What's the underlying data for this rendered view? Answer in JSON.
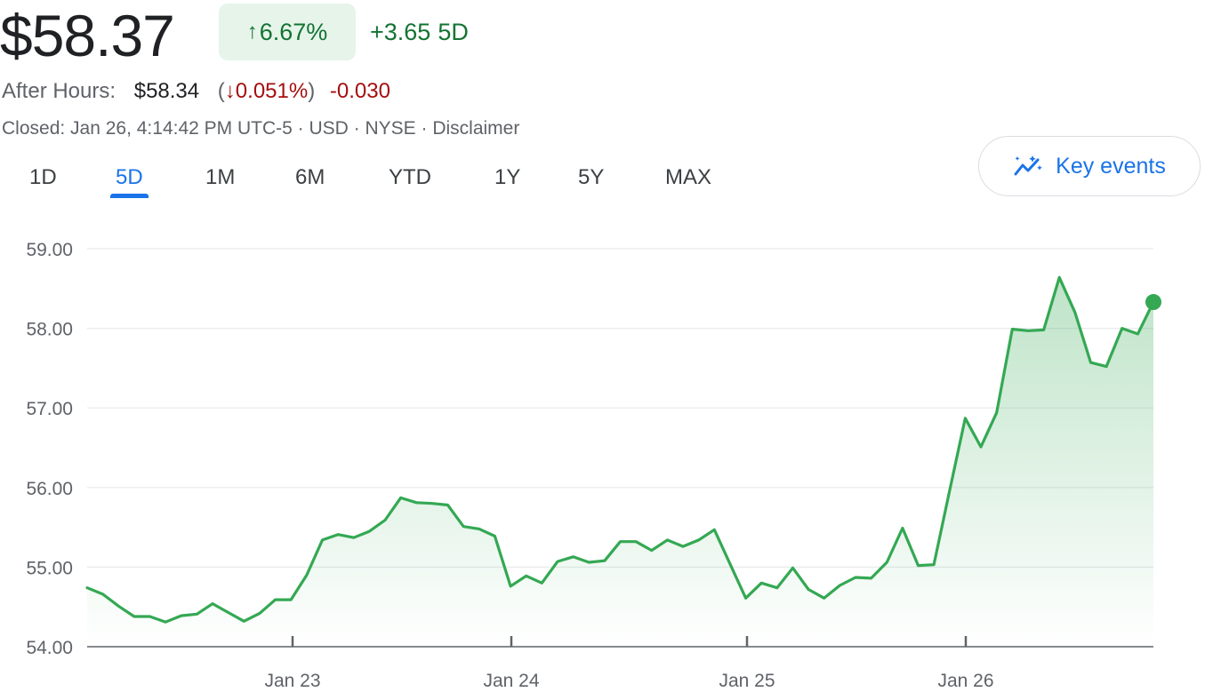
{
  "quote": {
    "price": "$58.37",
    "change_arrow": "↑",
    "change_pct": "6.67%",
    "change_abs": "+3.65",
    "change_period": "5D"
  },
  "after_hours": {
    "label": "After Hours:",
    "price": "$58.34",
    "open_paren": "(",
    "arrow": "↓",
    "pct": "0.051%",
    "close_paren": ")",
    "abs": "-0.030"
  },
  "meta": {
    "text": "Closed: Jan 26, 4:14:42 PM UTC-5 · USD · NYSE · Disclaimer"
  },
  "tabs": [
    {
      "label": "1D"
    },
    {
      "label": "5D",
      "active": true
    },
    {
      "label": "1M"
    },
    {
      "label": "6M"
    },
    {
      "label": "YTD"
    },
    {
      "label": "1Y"
    },
    {
      "label": "5Y"
    },
    {
      "label": "MAX"
    }
  ],
  "key_events": {
    "label": "Key events",
    "icon": "sparkline-icon"
  },
  "colors": {
    "positive": "#137333",
    "negative": "#a50e0e",
    "accent": "#1a73e8",
    "line": "#34a853"
  },
  "chart_data": {
    "type": "area",
    "title": "",
    "xlabel": "",
    "ylabel": "",
    "ylim": [
      54.0,
      59.0
    ],
    "y_ticks": [
      "59.00",
      "58.00",
      "57.00",
      "56.00",
      "55.00",
      "54.00"
    ],
    "x_ticks": [
      "Jan 23",
      "Jan 24",
      "Jan 25",
      "Jan 26"
    ],
    "grid": true,
    "series": [
      {
        "values": [
          54.74,
          54.66,
          54.51,
          54.38,
          54.38,
          54.31,
          54.39,
          54.41,
          54.54,
          54.43,
          54.32,
          54.42,
          54.59,
          54.59,
          54.9,
          55.34,
          55.41,
          55.37,
          55.45,
          55.59,
          55.87,
          55.81,
          55.8,
          55.78,
          55.51,
          55.48,
          55.39,
          54.76,
          54.89,
          54.8,
          55.07,
          55.13,
          55.06,
          55.08,
          55.32,
          55.32,
          55.21,
          55.34,
          55.26,
          55.34,
          55.47,
          55.04,
          54.61,
          54.8,
          54.74,
          54.99,
          54.72,
          54.61,
          54.77,
          54.87,
          54.86,
          55.06,
          55.49,
          55.02,
          55.03,
          55.96,
          56.87,
          56.51,
          56.94,
          57.99,
          57.97,
          57.98,
          58.64,
          58.2,
          57.57,
          57.52,
          58.0,
          57.93,
          58.33
        ]
      }
    ]
  }
}
